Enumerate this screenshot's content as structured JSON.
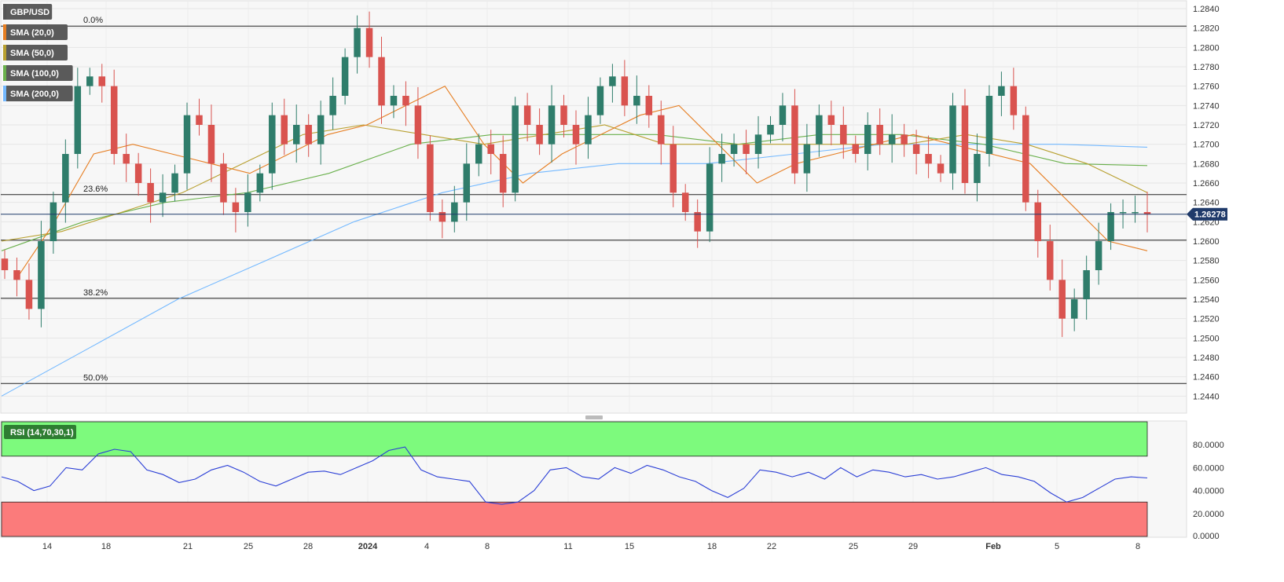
{
  "chart_data": [
    {
      "type": "candlestick",
      "symbol": "GBP/USD",
      "legend": [
        {
          "label": "GBP/USD",
          "color": "#555555"
        },
        {
          "label": "SMA (20,0)",
          "color": "#e67e22"
        },
        {
          "label": "SMA (50,0)",
          "color": "#b8a030"
        },
        {
          "label": "SMA (100,0)",
          "color": "#6ab04c"
        },
        {
          "label": "SMA (200,0)",
          "color": "#74b9ff"
        }
      ],
      "ylim": [
        1.242,
        1.284
      ],
      "y_ticks": [
        "1.2840",
        "1.2820",
        "1.2800",
        "1.2780",
        "1.2760",
        "1.2740",
        "1.2720",
        "1.2700",
        "1.2680",
        "1.2660",
        "1.2640",
        "1.2620",
        "1.2600",
        "1.2580",
        "1.2560",
        "1.2540",
        "1.2520",
        "1.2500",
        "1.2480",
        "1.2460",
        "1.2440"
      ],
      "x_ticks": [
        "14",
        "18",
        "21",
        "25",
        "28",
        "2024",
        "4",
        "8",
        "11",
        "15",
        "18",
        "22",
        "25",
        "29",
        "Feb",
        "5",
        "8"
      ],
      "current_price": "1.26278",
      "current_price_value": 1.26278,
      "horizontal_levels": [
        {
          "label": "0.0%",
          "value": 1.2822
        },
        {
          "label": "23.6%",
          "value": 1.2648
        },
        {
          "label": "",
          "value": 1.2601
        },
        {
          "label": "38.2%",
          "value": 1.2541
        },
        {
          "label": "50.0%",
          "value": 1.2453
        }
      ],
      "series_keypoints": {
        "close": [
          1.257,
          1.256,
          1.253,
          1.26,
          1.264,
          1.269,
          1.276,
          1.277,
          1.276,
          1.269,
          1.268,
          1.266,
          1.264,
          1.265,
          1.267,
          1.273,
          1.272,
          1.268,
          1.264,
          1.263,
          1.265,
          1.267,
          1.273,
          1.27,
          1.272,
          1.27,
          1.273,
          1.275,
          1.279,
          1.282,
          1.279,
          1.274,
          1.275,
          1.274,
          1.27,
          1.263,
          1.262,
          1.264,
          1.268,
          1.27,
          1.269,
          1.265,
          1.274,
          1.272,
          1.27,
          1.274,
          1.272,
          1.27,
          1.273,
          1.276,
          1.277,
          1.274,
          1.275,
          1.273,
          1.27,
          1.265,
          1.263,
          1.261,
          1.268,
          1.269,
          1.27,
          1.269,
          1.271,
          1.272,
          1.274,
          1.267,
          1.27,
          1.273,
          1.272,
          1.27,
          1.269,
          1.272,
          1.27,
          1.271,
          1.27,
          1.269,
          1.268,
          1.267,
          1.274,
          1.266,
          1.269,
          1.275,
          1.276,
          1.273,
          1.264,
          1.26,
          1.256,
          1.252,
          1.254,
          1.257,
          1.26,
          1.263,
          1.263,
          1.263,
          1.2628
        ],
        "sma20": [
          1.256,
          1.262,
          1.269,
          1.27,
          1.269,
          1.268,
          1.267,
          1.269,
          1.271,
          1.272,
          1.274,
          1.276,
          1.27,
          1.266,
          1.269,
          1.271,
          1.273,
          1.274,
          1.27,
          1.266,
          1.268,
          1.269,
          1.27,
          1.271,
          1.27,
          1.269,
          1.268,
          1.264,
          1.26,
          1.259
        ],
        "sma50": [
          1.26,
          1.261,
          1.263,
          1.265,
          1.268,
          1.271,
          1.272,
          1.271,
          1.27,
          1.271,
          1.272,
          1.27,
          1.27,
          1.27,
          1.27,
          1.27,
          1.271,
          1.27,
          1.268,
          1.265
        ],
        "sma100": [
          1.259,
          1.262,
          1.264,
          1.265,
          1.267,
          1.27,
          1.271,
          1.271,
          1.271,
          1.27,
          1.271,
          1.271,
          1.27,
          1.268,
          1.2678
        ],
        "sma200": [
          1.244,
          1.249,
          1.254,
          1.258,
          1.262,
          1.265,
          1.267,
          1.268,
          1.268,
          1.269,
          1.27,
          1.27,
          1.27,
          1.2697
        ]
      }
    },
    {
      "type": "line",
      "title": "RSI (14,70,30,1)",
      "ylim": [
        0,
        100
      ],
      "y_ticks": [
        "80.0000",
        "60.0000",
        "40.0000",
        "20.0000",
        "0.0000"
      ],
      "overbought": 70,
      "oversold": 30,
      "series": [
        {
          "values": [
            52,
            48,
            40,
            44,
            60,
            58,
            72,
            76,
            74,
            58,
            54,
            47,
            50,
            58,
            62,
            56,
            48,
            44,
            50,
            56,
            57,
            54,
            60,
            66,
            75,
            78,
            58,
            52,
            50,
            48,
            30,
            28,
            30,
            40,
            58,
            60,
            52,
            50,
            60,
            55,
            62,
            58,
            52,
            48,
            40,
            34,
            42,
            58,
            56,
            52,
            56,
            50,
            60,
            52,
            58,
            56,
            52,
            54,
            50,
            52,
            56,
            60,
            54,
            52,
            48,
            38,
            30,
            34,
            42,
            50,
            52,
            51
          ]
        }
      ]
    }
  ]
}
